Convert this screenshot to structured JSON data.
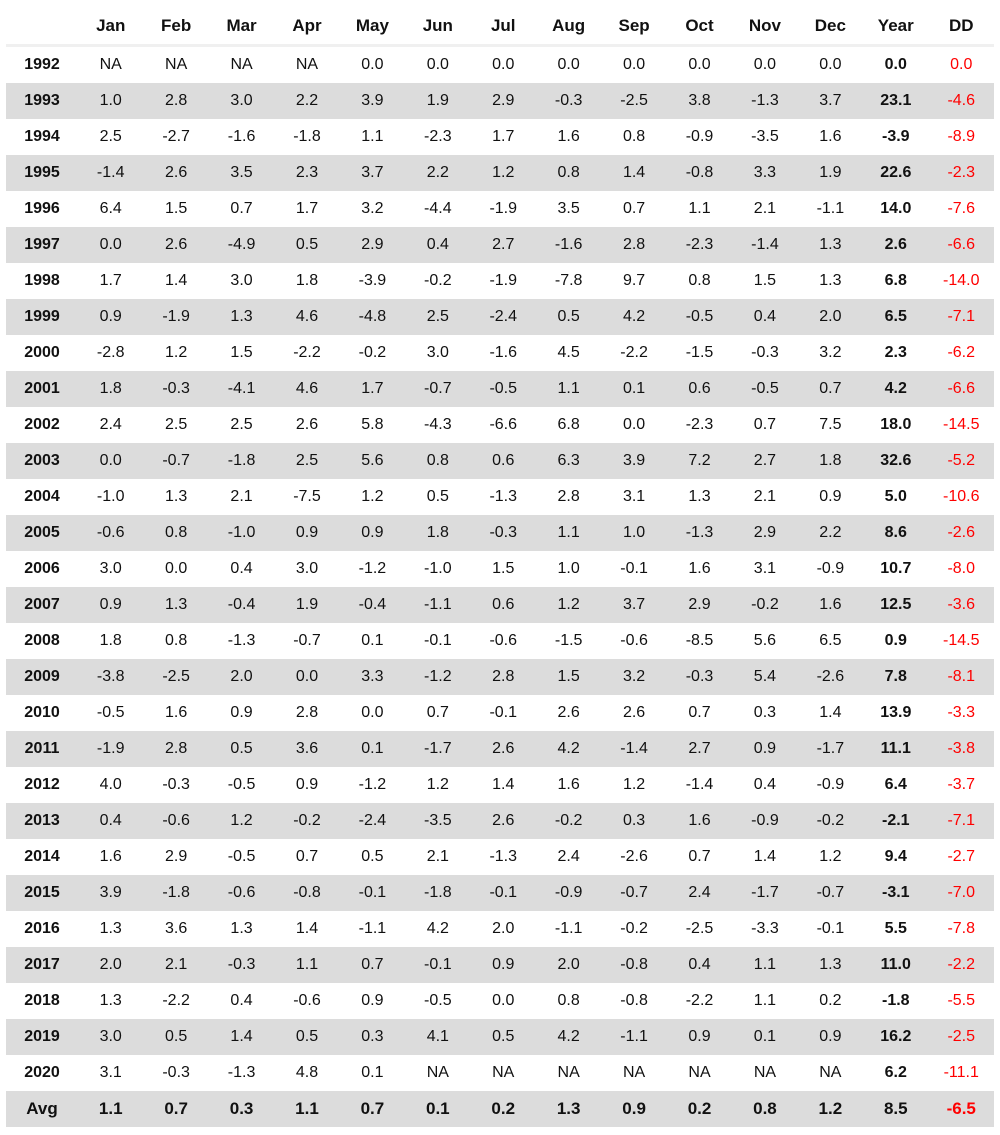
{
  "headers": [
    "",
    "Jan",
    "Feb",
    "Mar",
    "Apr",
    "May",
    "Jun",
    "Jul",
    "Aug",
    "Sep",
    "Oct",
    "Nov",
    "Dec",
    "Year",
    "DD"
  ],
  "rows": [
    {
      "label": "1992",
      "vals": [
        "NA",
        "NA",
        "NA",
        "NA",
        "0.0",
        "0.0",
        "0.0",
        "0.0",
        "0.0",
        "0.0",
        "0.0",
        "0.0"
      ],
      "year": "0.0",
      "dd": "0.0"
    },
    {
      "label": "1993",
      "vals": [
        "1.0",
        "2.8",
        "3.0",
        "2.2",
        "3.9",
        "1.9",
        "2.9",
        "-0.3",
        "-2.5",
        "3.8",
        "-1.3",
        "3.7"
      ],
      "year": "23.1",
      "dd": "-4.6"
    },
    {
      "label": "1994",
      "vals": [
        "2.5",
        "-2.7",
        "-1.6",
        "-1.8",
        "1.1",
        "-2.3",
        "1.7",
        "1.6",
        "0.8",
        "-0.9",
        "-3.5",
        "1.6"
      ],
      "year": "-3.9",
      "dd": "-8.9"
    },
    {
      "label": "1995",
      "vals": [
        "-1.4",
        "2.6",
        "3.5",
        "2.3",
        "3.7",
        "2.2",
        "1.2",
        "0.8",
        "1.4",
        "-0.8",
        "3.3",
        "1.9"
      ],
      "year": "22.6",
      "dd": "-2.3"
    },
    {
      "label": "1996",
      "vals": [
        "6.4",
        "1.5",
        "0.7",
        "1.7",
        "3.2",
        "-4.4",
        "-1.9",
        "3.5",
        "0.7",
        "1.1",
        "2.1",
        "-1.1"
      ],
      "year": "14.0",
      "dd": "-7.6"
    },
    {
      "label": "1997",
      "vals": [
        "0.0",
        "2.6",
        "-4.9",
        "0.5",
        "2.9",
        "0.4",
        "2.7",
        "-1.6",
        "2.8",
        "-2.3",
        "-1.4",
        "1.3"
      ],
      "year": "2.6",
      "dd": "-6.6"
    },
    {
      "label": "1998",
      "vals": [
        "1.7",
        "1.4",
        "3.0",
        "1.8",
        "-3.9",
        "-0.2",
        "-1.9",
        "-7.8",
        "9.7",
        "0.8",
        "1.5",
        "1.3"
      ],
      "year": "6.8",
      "dd": "-14.0"
    },
    {
      "label": "1999",
      "vals": [
        "0.9",
        "-1.9",
        "1.3",
        "4.6",
        "-4.8",
        "2.5",
        "-2.4",
        "0.5",
        "4.2",
        "-0.5",
        "0.4",
        "2.0"
      ],
      "year": "6.5",
      "dd": "-7.1"
    },
    {
      "label": "2000",
      "vals": [
        "-2.8",
        "1.2",
        "1.5",
        "-2.2",
        "-0.2",
        "3.0",
        "-1.6",
        "4.5",
        "-2.2",
        "-1.5",
        "-0.3",
        "3.2"
      ],
      "year": "2.3",
      "dd": "-6.2"
    },
    {
      "label": "2001",
      "vals": [
        "1.8",
        "-0.3",
        "-4.1",
        "4.6",
        "1.7",
        "-0.7",
        "-0.5",
        "1.1",
        "0.1",
        "0.6",
        "-0.5",
        "0.7"
      ],
      "year": "4.2",
      "dd": "-6.6"
    },
    {
      "label": "2002",
      "vals": [
        "2.4",
        "2.5",
        "2.5",
        "2.6",
        "5.8",
        "-4.3",
        "-6.6",
        "6.8",
        "0.0",
        "-2.3",
        "0.7",
        "7.5"
      ],
      "year": "18.0",
      "dd": "-14.5"
    },
    {
      "label": "2003",
      "vals": [
        "0.0",
        "-0.7",
        "-1.8",
        "2.5",
        "5.6",
        "0.8",
        "0.6",
        "6.3",
        "3.9",
        "7.2",
        "2.7",
        "1.8"
      ],
      "year": "32.6",
      "dd": "-5.2"
    },
    {
      "label": "2004",
      "vals": [
        "-1.0",
        "1.3",
        "2.1",
        "-7.5",
        "1.2",
        "0.5",
        "-1.3",
        "2.8",
        "3.1",
        "1.3",
        "2.1",
        "0.9"
      ],
      "year": "5.0",
      "dd": "-10.6"
    },
    {
      "label": "2005",
      "vals": [
        "-0.6",
        "0.8",
        "-1.0",
        "0.9",
        "0.9",
        "1.8",
        "-0.3",
        "1.1",
        "1.0",
        "-1.3",
        "2.9",
        "2.2"
      ],
      "year": "8.6",
      "dd": "-2.6"
    },
    {
      "label": "2006",
      "vals": [
        "3.0",
        "0.0",
        "0.4",
        "3.0",
        "-1.2",
        "-1.0",
        "1.5",
        "1.0",
        "-0.1",
        "1.6",
        "3.1",
        "-0.9"
      ],
      "year": "10.7",
      "dd": "-8.0"
    },
    {
      "label": "2007",
      "vals": [
        "0.9",
        "1.3",
        "-0.4",
        "1.9",
        "-0.4",
        "-1.1",
        "0.6",
        "1.2",
        "3.7",
        "2.9",
        "-0.2",
        "1.6"
      ],
      "year": "12.5",
      "dd": "-3.6"
    },
    {
      "label": "2008",
      "vals": [
        "1.8",
        "0.8",
        "-1.3",
        "-0.7",
        "0.1",
        "-0.1",
        "-0.6",
        "-1.5",
        "-0.6",
        "-8.5",
        "5.6",
        "6.5"
      ],
      "year": "0.9",
      "dd": "-14.5"
    },
    {
      "label": "2009",
      "vals": [
        "-3.8",
        "-2.5",
        "2.0",
        "0.0",
        "3.3",
        "-1.2",
        "2.8",
        "1.5",
        "3.2",
        "-0.3",
        "5.4",
        "-2.6"
      ],
      "year": "7.8",
      "dd": "-8.1"
    },
    {
      "label": "2010",
      "vals": [
        "-0.5",
        "1.6",
        "0.9",
        "2.8",
        "0.0",
        "0.7",
        "-0.1",
        "2.6",
        "2.6",
        "0.7",
        "0.3",
        "1.4"
      ],
      "year": "13.9",
      "dd": "-3.3"
    },
    {
      "label": "2011",
      "vals": [
        "-1.9",
        "2.8",
        "0.5",
        "3.6",
        "0.1",
        "-1.7",
        "2.6",
        "4.2",
        "-1.4",
        "2.7",
        "0.9",
        "-1.7"
      ],
      "year": "11.1",
      "dd": "-3.8"
    },
    {
      "label": "2012",
      "vals": [
        "4.0",
        "-0.3",
        "-0.5",
        "0.9",
        "-1.2",
        "1.2",
        "1.4",
        "1.6",
        "1.2",
        "-1.4",
        "0.4",
        "-0.9"
      ],
      "year": "6.4",
      "dd": "-3.7"
    },
    {
      "label": "2013",
      "vals": [
        "0.4",
        "-0.6",
        "1.2",
        "-0.2",
        "-2.4",
        "-3.5",
        "2.6",
        "-0.2",
        "0.3",
        "1.6",
        "-0.9",
        "-0.2"
      ],
      "year": "-2.1",
      "dd": "-7.1"
    },
    {
      "label": "2014",
      "vals": [
        "1.6",
        "2.9",
        "-0.5",
        "0.7",
        "0.5",
        "2.1",
        "-1.3",
        "2.4",
        "-2.6",
        "0.7",
        "1.4",
        "1.2"
      ],
      "year": "9.4",
      "dd": "-2.7"
    },
    {
      "label": "2015",
      "vals": [
        "3.9",
        "-1.8",
        "-0.6",
        "-0.8",
        "-0.1",
        "-1.8",
        "-0.1",
        "-0.9",
        "-0.7",
        "2.4",
        "-1.7",
        "-0.7"
      ],
      "year": "-3.1",
      "dd": "-7.0"
    },
    {
      "label": "2016",
      "vals": [
        "1.3",
        "3.6",
        "1.3",
        "1.4",
        "-1.1",
        "4.2",
        "2.0",
        "-1.1",
        "-0.2",
        "-2.5",
        "-3.3",
        "-0.1"
      ],
      "year": "5.5",
      "dd": "-7.8"
    },
    {
      "label": "2017",
      "vals": [
        "2.0",
        "2.1",
        "-0.3",
        "1.1",
        "0.7",
        "-0.1",
        "0.9",
        "2.0",
        "-0.8",
        "0.4",
        "1.1",
        "1.3"
      ],
      "year": "11.0",
      "dd": "-2.2"
    },
    {
      "label": "2018",
      "vals": [
        "1.3",
        "-2.2",
        "0.4",
        "-0.6",
        "0.9",
        "-0.5",
        "0.0",
        "0.8",
        "-0.8",
        "-2.2",
        "1.1",
        "0.2"
      ],
      "year": "-1.8",
      "dd": "-5.5"
    },
    {
      "label": "2019",
      "vals": [
        "3.0",
        "0.5",
        "1.4",
        "0.5",
        "0.3",
        "4.1",
        "0.5",
        "4.2",
        "-1.1",
        "0.9",
        "0.1",
        "0.9"
      ],
      "year": "16.2",
      "dd": "-2.5"
    },
    {
      "label": "2020",
      "vals": [
        "3.1",
        "-0.3",
        "-1.3",
        "4.8",
        "0.1",
        "NA",
        "NA",
        "NA",
        "NA",
        "NA",
        "NA",
        "NA"
      ],
      "year": "6.2",
      "dd": "-11.1"
    },
    {
      "label": "Avg",
      "vals": [
        "1.1",
        "0.7",
        "0.3",
        "1.1",
        "0.7",
        "0.1",
        "0.2",
        "1.3",
        "0.9",
        "0.2",
        "0.8",
        "1.2"
      ],
      "year": "8.5",
      "dd": "-6.5"
    }
  ],
  "colors": {
    "shade": "#dcdcdc",
    "dd": "#ff0000"
  }
}
